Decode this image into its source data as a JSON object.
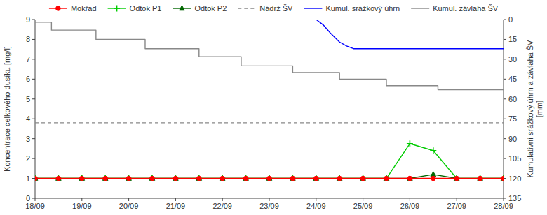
{
  "chart_data": {
    "type": "line",
    "ylabel": "Koncentrace celkového dusíku [mg/l]",
    "y2label": "Kumulativní srážkový úhrn a závlaha ŠV\n[mm]",
    "xlim": [
      0,
      10
    ],
    "xticks": [
      {
        "value": 0,
        "label": "18/09"
      },
      {
        "value": 1,
        "label": "19/09"
      },
      {
        "value": 2,
        "label": "20/09"
      },
      {
        "value": 3,
        "label": "21/09"
      },
      {
        "value": 4,
        "label": "22/09"
      },
      {
        "value": 5,
        "label": "23/09"
      },
      {
        "value": 6,
        "label": "24/09"
      },
      {
        "value": 7,
        "label": "25/09"
      },
      {
        "value": 8,
        "label": "26/09"
      },
      {
        "value": 9,
        "label": "27/09"
      },
      {
        "value": 10,
        "label": "28/09"
      }
    ],
    "ylim": [
      0,
      9
    ],
    "yticks": [
      0,
      1,
      2,
      3,
      4,
      5,
      6,
      7,
      8,
      9
    ],
    "y2lim": [
      135,
      0
    ],
    "y2ticks": [
      0,
      15,
      30,
      45,
      60,
      75,
      90,
      105,
      120,
      135
    ],
    "grid": false,
    "legend": "top",
    "series": [
      {
        "name": "Mokřad",
        "color": "red",
        "marker": "circle",
        "line_style": "solid",
        "x": [
          0,
          0.5,
          1.0,
          1.5,
          2.0,
          2.5,
          3.0,
          3.5,
          4.0,
          4.5,
          5.0,
          5.5,
          6.0,
          6.5,
          7.0,
          7.5,
          8.0,
          8.5,
          9.0,
          9.5,
          10.0
        ],
        "values": [
          1,
          1,
          1,
          1,
          1,
          1,
          1,
          1,
          1,
          1,
          1,
          1,
          1,
          1,
          1,
          1,
          1,
          1,
          1,
          1,
          1
        ]
      },
      {
        "name": "Odtok P1",
        "color": "#00cc00",
        "marker": "plus",
        "line_style": "solid",
        "x": [
          0,
          0.5,
          1.0,
          1.5,
          2.0,
          2.5,
          3.0,
          3.5,
          4.0,
          4.5,
          5.0,
          5.5,
          6.0,
          6.5,
          7.0,
          7.5,
          8.0,
          8.5,
          9.0,
          9.5,
          10.0
        ],
        "values": [
          1,
          1,
          1,
          1,
          1,
          1,
          1,
          1,
          1,
          1,
          1,
          1,
          1,
          1,
          1,
          1,
          2.75,
          2.4,
          1,
          1,
          1
        ]
      },
      {
        "name": "Odtok P2",
        "color": "#006600",
        "marker": "triangle",
        "line_style": "solid",
        "x": [
          0,
          0.5,
          1.0,
          1.5,
          2.0,
          2.5,
          3.0,
          3.5,
          4.0,
          4.5,
          5.0,
          5.5,
          6.0,
          6.5,
          7.0,
          7.5,
          8.0,
          8.5,
          9.0,
          9.5,
          10.0
        ],
        "values": [
          1,
          1,
          1,
          1,
          1,
          1,
          1,
          1,
          1,
          1,
          1,
          1,
          1,
          1,
          1,
          1,
          1,
          1.2,
          1,
          1,
          1
        ]
      },
      {
        "name": "Nádrž ŠV",
        "type": "hline",
        "color": "#888888",
        "line_style": "dashed",
        "values": [
          3.8
        ]
      },
      {
        "name": "Kumul. srážkový úhrn",
        "axis": "y2",
        "color": "blue",
        "line_style": "solid",
        "x": [
          0,
          6.0,
          6.15,
          6.3,
          6.5,
          6.65,
          6.8,
          7.0,
          10.0
        ],
        "values": [
          0,
          0,
          4,
          10,
          17,
          20,
          22,
          22,
          22
        ]
      },
      {
        "name": "Kumul. závlaha ŠV",
        "axis": "y2",
        "color": "#888888",
        "line_style": "solid",
        "x": [
          0,
          0.35,
          0.35,
          1.3,
          1.3,
          2.35,
          2.35,
          3.5,
          3.5,
          4.4,
          4.4,
          5.5,
          5.5,
          6.5,
          6.5,
          7.5,
          7.5,
          8.6,
          8.6,
          10.0
        ],
        "values": [
          2,
          2,
          8,
          8,
          15,
          15,
          22,
          22,
          28,
          28,
          35,
          35,
          40,
          40,
          45,
          45,
          50,
          50,
          53,
          53
        ]
      }
    ]
  }
}
